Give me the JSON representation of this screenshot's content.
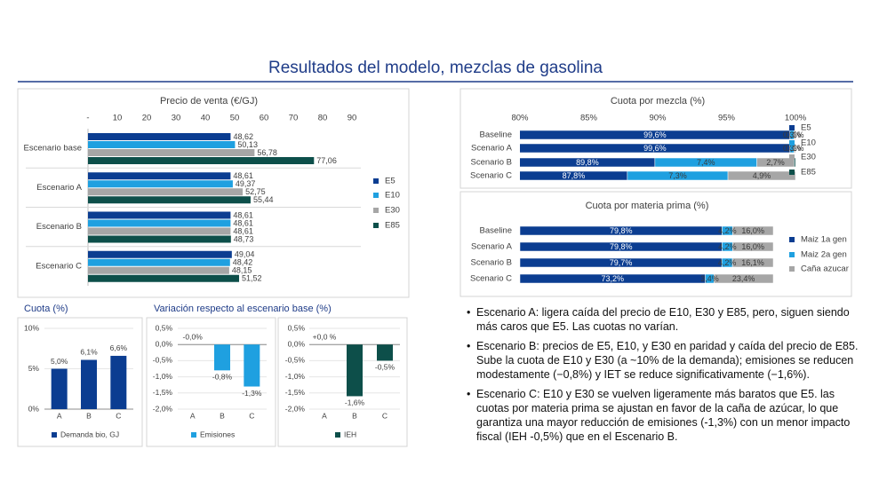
{
  "title": "Resultados del modelo, mezclas de gasolina",
  "variation_heading": "Variación respecto al escenario base (%)",
  "bullets": [
    "Escenario A: ligera caída del precio de E10, E30 y E85, pero, siguen siendo más caros que E5. Las cuotas no varían.",
    "Escenario B: precios de E5, E10, y E30 en paridad y caída del precio de E85. Sube la cuota de E10 y E30 (a ~10% de la demanda); emisiones se reducen modestamente (−0,8%) y IET se reduce significativamente (−1,6%).",
    "Escenario C: E10 y E30 se vuelven ligeramente más baratos que E5. las cuotas por materia prima se ajustan en favor de la caña de azúcar, lo que garantiza una mayor reducción de emisiones (-1,3%) con un menor impacto fiscal (IEH -0,5%) que en el Escenario B."
  ],
  "chart_data": [
    {
      "type": "hbar",
      "title": "Precio de venta (€/GJ)",
      "categories": [
        "Escenario base",
        "Escenario A",
        "Escenario B",
        "Escenario C"
      ],
      "series": [
        {
          "name": "E5",
          "color": "#0b3d91",
          "values": [
            48.62,
            48.61,
            48.61,
            49.04
          ],
          "value_labels": [
            "48,62",
            "48,61",
            "48,61",
            "49,04"
          ]
        },
        {
          "name": "E10",
          "color": "#1fa0e0",
          "values": [
            50.13,
            49.37,
            48.61,
            48.42
          ],
          "value_labels": [
            "50,13",
            "49,37",
            "48,61",
            "48,42"
          ]
        },
        {
          "name": "E30",
          "color": "#a6a6a6",
          "values": [
            56.78,
            52.75,
            48.61,
            48.15
          ],
          "value_labels": [
            "56,78",
            "52,75",
            "48,61",
            "48,15"
          ]
        },
        {
          "name": "E85",
          "color": "#0d4f4a",
          "values": [
            77.06,
            55.44,
            48.73,
            51.52
          ],
          "value_labels": [
            "77,06",
            "55,44",
            "48,73",
            "51,52"
          ]
        }
      ],
      "xlim": [
        0,
        90
      ],
      "xticks": [
        {
          "value": 0,
          "label": "-"
        },
        10,
        20,
        30,
        40,
        50,
        60,
        70,
        80,
        90
      ],
      "legend": "right"
    },
    {
      "type": "hstack",
      "title": "Cuota por mezcla (%)",
      "categories": [
        "Baseline",
        "Scenario A",
        "Scenario B",
        "Scenario C"
      ],
      "series": [
        {
          "name": "E5",
          "color": "#0b3d91",
          "values": [
            99.6,
            99.6,
            89.8,
            87.8
          ],
          "value_labels": [
            "99,6%",
            "99,6%",
            "89,8%",
            "87,8%"
          ]
        },
        {
          "name": "E10",
          "color": "#1fa0e0",
          "values": [
            0.3,
            0.3,
            7.4,
            7.3
          ],
          "value_labels": [
            "0,3%",
            "0,3%",
            "7,4%",
            "7,3%"
          ]
        },
        {
          "name": "E30",
          "color": "#a6a6a6",
          "values": [
            0.1,
            0.1,
            2.7,
            4.9
          ],
          "value_labels": [
            "0,1%",
            "0,1%",
            "2,7%",
            "4,9%"
          ]
        },
        {
          "name": "E85",
          "color": "#0d4f4a",
          "values": [
            0,
            0,
            0.1,
            0
          ]
        }
      ],
      "xlim": [
        80,
        100
      ],
      "xticks": [
        {
          "value": 80,
          "label": "80%"
        },
        {
          "value": 85,
          "label": "85%"
        },
        {
          "value": 90,
          "label": "90%"
        },
        {
          "value": 95,
          "label": "95%"
        },
        {
          "value": 100,
          "label": "100%"
        }
      ],
      "legend": "right"
    },
    {
      "type": "hstack",
      "title": "Cuota por materia prima (%)",
      "categories": [
        "Baseline",
        "Scenario A",
        "Scenario B",
        "Scenario C"
      ],
      "series": [
        {
          "name": "Maiz 1a gen",
          "color": "#0b3d91",
          "values": [
            79.8,
            79.8,
            79.7,
            73.2
          ],
          "value_labels": [
            "79,8%",
            "79,8%",
            "79,7%",
            "73,2%"
          ]
        },
        {
          "name": "Maiz 2a gen",
          "color": "#1fa0e0",
          "values": [
            4.2,
            4.2,
            4.2,
            3.4
          ],
          "value_labels": [
            "4,2%",
            "4,2%",
            "4,2%",
            "3,4%"
          ]
        },
        {
          "name": "Caña azucar",
          "color": "#a6a6a6",
          "values": [
            16.0,
            16.0,
            16.1,
            23.4
          ],
          "value_labels": [
            "16,0%",
            "16,0%",
            "16,1%",
            "23,4%"
          ]
        }
      ],
      "xlim": [
        0,
        100
      ],
      "legend": "right"
    },
    {
      "type": "vbar",
      "title": "Cuota (%)",
      "categories": [
        "A",
        "B",
        "C"
      ],
      "series": [
        {
          "name": "Demanda bio, GJ",
          "color": "#0b3d91",
          "values": [
            5.0,
            6.1,
            6.6
          ],
          "value_labels": [
            "5,0%",
            "6,1%",
            "6,6%"
          ]
        }
      ],
      "ylim": [
        0,
        10
      ],
      "yticks": [
        {
          "value": 0,
          "label": "0%"
        },
        {
          "value": 5,
          "label": "5%"
        },
        {
          "value": 10,
          "label": "10%"
        }
      ],
      "grid": true,
      "legend": "bottom"
    },
    {
      "type": "vbar",
      "categories": [
        "A",
        "B",
        "C"
      ],
      "series": [
        {
          "name": "Emisiones",
          "color": "#1fa0e0",
          "values": [
            0,
            -0.8,
            -1.3
          ],
          "value_labels": [
            "-0,0%",
            "-0,8%",
            "-1,3%"
          ]
        }
      ],
      "ylim": [
        -2,
        0.5
      ],
      "yticks": [
        {
          "value": 0.5,
          "label": "0,5%"
        },
        {
          "value": 0,
          "label": "0,0%"
        },
        {
          "value": -0.5,
          "label": "-0,5%"
        },
        {
          "value": -1,
          "label": "-1,0%"
        },
        {
          "value": -1.5,
          "label": "-1,5%"
        },
        {
          "value": -2,
          "label": "-2,0%"
        }
      ],
      "grid": true,
      "legend": "bottom"
    },
    {
      "type": "vbar",
      "categories": [
        "A",
        "B",
        "C"
      ],
      "series": [
        {
          "name": "IEH",
          "color": "#0d4f4a",
          "values": [
            0,
            -1.6,
            -0.5
          ],
          "value_labels": [
            "+0,0 %",
            "-1,6%",
            "-0,5%"
          ]
        }
      ],
      "ylim": [
        -2,
        0.5
      ],
      "yticks": [
        {
          "value": 0.5,
          "label": "0,5%"
        },
        {
          "value": 0,
          "label": "0,0%"
        },
        {
          "value": -0.5,
          "label": "-0,5%"
        },
        {
          "value": -1,
          "label": "-1,0%"
        },
        {
          "value": -1.5,
          "label": "-1,5%"
        },
        {
          "value": -2,
          "label": "-2,0%"
        }
      ],
      "grid": true,
      "legend": "bottom"
    }
  ]
}
